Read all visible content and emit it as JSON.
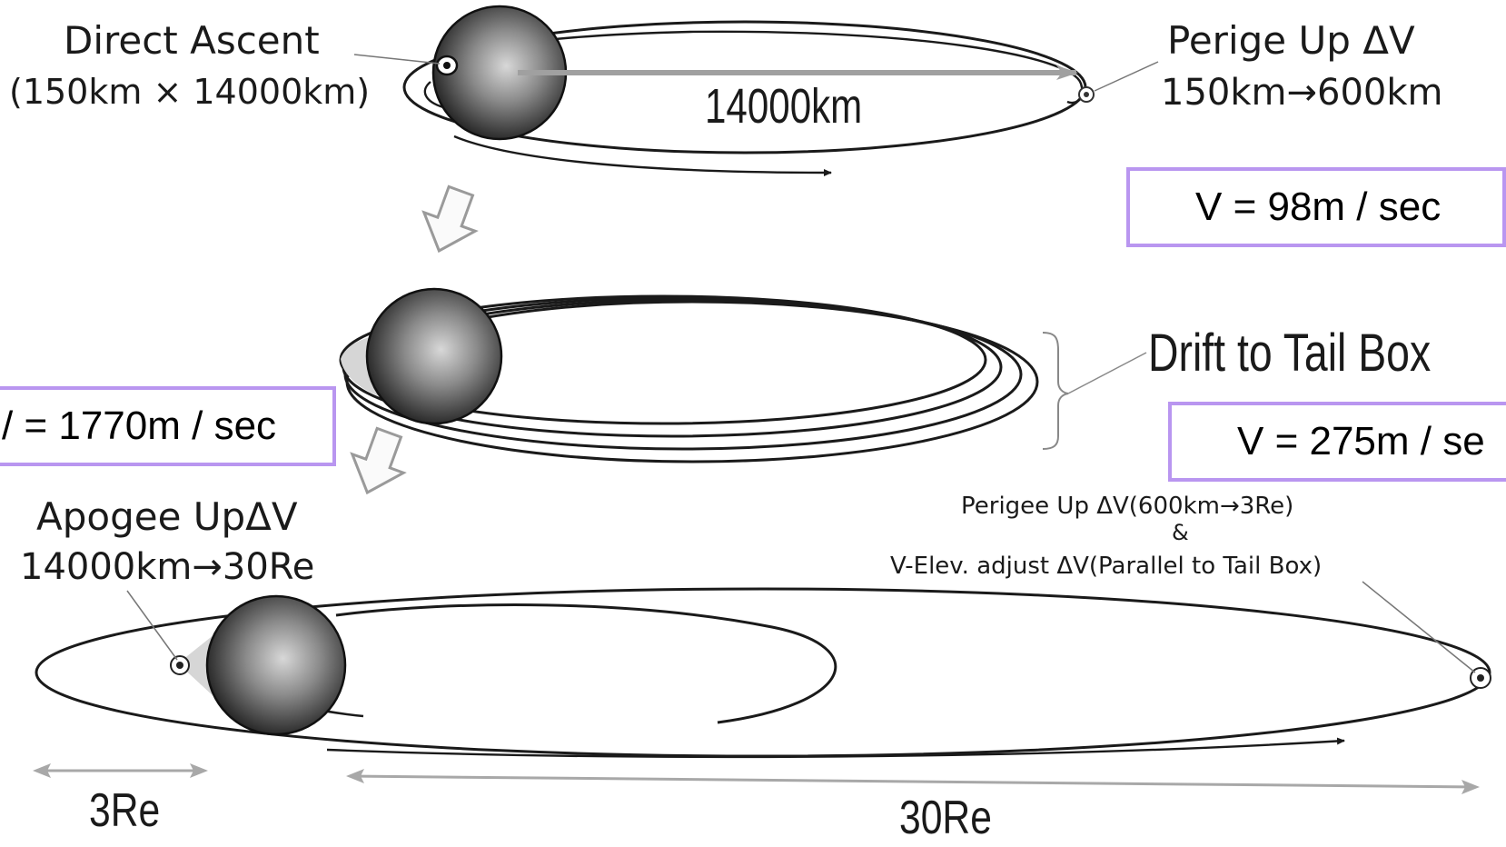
{
  "labels": {
    "direct_ascent": "Direct Ascent",
    "direct_ascent_orbit": "(150km × 14000km)",
    "apogee_distance": "14000km",
    "perige_up": "Perige Up ΔV",
    "perige_up_range": "150km→600km",
    "drift": "Drift to Tail Box",
    "apogee_up": "Apogee UpΔV",
    "apogee_up_range": "14000km→30Re",
    "perigee_up_line1": "Perigee Up ΔV(600km→3Re)",
    "perigee_up_line2": "&",
    "perigee_up_line3": "V-Elev. adjust ΔV(Parallel to Tail Box)",
    "scale_small": "3Re",
    "scale_large": "30Re"
  },
  "delta_v_boxes": {
    "box_98": "V = 98m / sec",
    "box_1770": "/ = 1770m / sec",
    "box_275": "V = 275m / se"
  },
  "colors": {
    "box_border": "#b996f0",
    "line": "#1a1a1a",
    "arrow_gray": "#a9a9a9"
  }
}
